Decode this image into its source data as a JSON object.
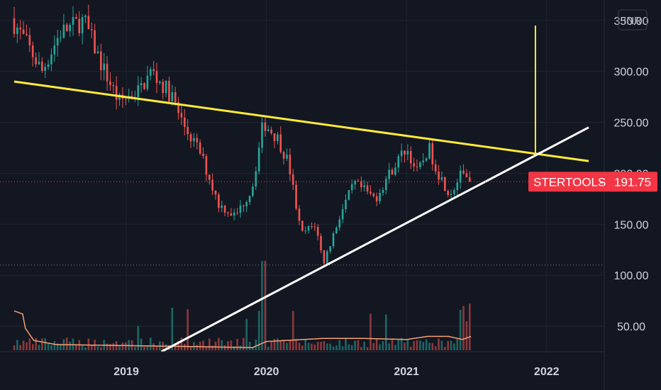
{
  "currency": "INR",
  "chart_data": {
    "type": "candlestick",
    "symbol": "STERTOOLS",
    "last_price": "191.75",
    "last_price_value": 191.75,
    "price_ticks": [
      "350.00",
      "300.00",
      "250.00",
      "200.00",
      "150.00",
      "100.00",
      "50.00"
    ],
    "price_tick_values": [
      350,
      300,
      250,
      200,
      150,
      100,
      50
    ],
    "time_ticks": [
      "2019",
      "2020",
      "2021",
      "2022"
    ],
    "time_tick_values": [
      2019.0,
      2020.0,
      2021.0,
      2022.0
    ],
    "x_range": [
      2018.2,
      2022.3
    ],
    "y_range": [
      25,
      370
    ],
    "reference_price": 110,
    "series_anchors": [
      [
        2018.2,
        352
      ],
      [
        2018.3,
        330
      ],
      [
        2018.42,
        300
      ],
      [
        2018.55,
        338
      ],
      [
        2018.72,
        350
      ],
      [
        2018.85,
        305
      ],
      [
        2018.97,
        270
      ],
      [
        2019.12,
        282
      ],
      [
        2019.2,
        300
      ],
      [
        2019.35,
        275
      ],
      [
        2019.42,
        250
      ],
      [
        2019.55,
        220
      ],
      [
        2019.68,
        170
      ],
      [
        2019.8,
        158
      ],
      [
        2019.92,
        185
      ],
      [
        2020.0,
        250
      ],
      [
        2020.1,
        235
      ],
      [
        2020.18,
        210
      ],
      [
        2020.27,
        140
      ],
      [
        2020.37,
        150
      ],
      [
        2020.43,
        112
      ],
      [
        2020.55,
        160
      ],
      [
        2020.65,
        190
      ],
      [
        2020.8,
        175
      ],
      [
        2020.9,
        200
      ],
      [
        2021.02,
        225
      ],
      [
        2021.1,
        200
      ],
      [
        2021.18,
        225
      ],
      [
        2021.25,
        200
      ],
      [
        2021.33,
        180
      ],
      [
        2021.42,
        200
      ],
      [
        2021.46,
        192
      ]
    ],
    "trendlines": [
      {
        "color": "#ffeb3b",
        "from": [
          2018.2,
          290
        ],
        "to": [
          2022.3,
          212
        ]
      },
      {
        "color": "#ffffff",
        "from": [
          2019.25,
          25
        ],
        "to": [
          2022.3,
          245
        ]
      }
    ],
    "target_marker": {
      "color": "#ffeb3b",
      "x": 2021.92,
      "y_from": 218,
      "y_to": 345
    },
    "volume_ma_anchors": [
      [
        2018.2,
        65
      ],
      [
        2018.26,
        62
      ],
      [
        2018.28,
        48
      ],
      [
        2018.34,
        36
      ],
      [
        2018.5,
        32
      ],
      [
        2019.0,
        31
      ],
      [
        2019.5,
        30
      ],
      [
        2019.9,
        29
      ],
      [
        2020.0,
        35
      ],
      [
        2020.4,
        38
      ],
      [
        2020.7,
        38
      ],
      [
        2021.0,
        37
      ],
      [
        2021.15,
        40
      ],
      [
        2021.3,
        40
      ],
      [
        2021.4,
        37
      ],
      [
        2021.46,
        40
      ]
    ],
    "colors": {
      "up": "#26a69a",
      "down": "#ef5350",
      "background": "#131722",
      "grid": "#1f2433",
      "price_tag": "#f23645"
    }
  }
}
